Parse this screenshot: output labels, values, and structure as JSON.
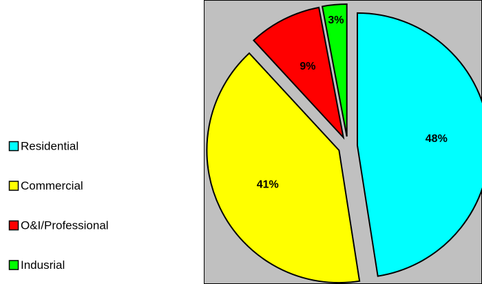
{
  "chart_data": {
    "type": "pie",
    "categories": [
      "Residential",
      "Commercial",
      "O&I/Professional",
      "Indusrial"
    ],
    "values": [
      48,
      41,
      9,
      3
    ],
    "value_labels": [
      "48%",
      "41%",
      "9%",
      "3%"
    ],
    "colors": [
      "#00ffff",
      "#ffff00",
      "#ff0000",
      "#00ff00"
    ],
    "legend": "left"
  }
}
